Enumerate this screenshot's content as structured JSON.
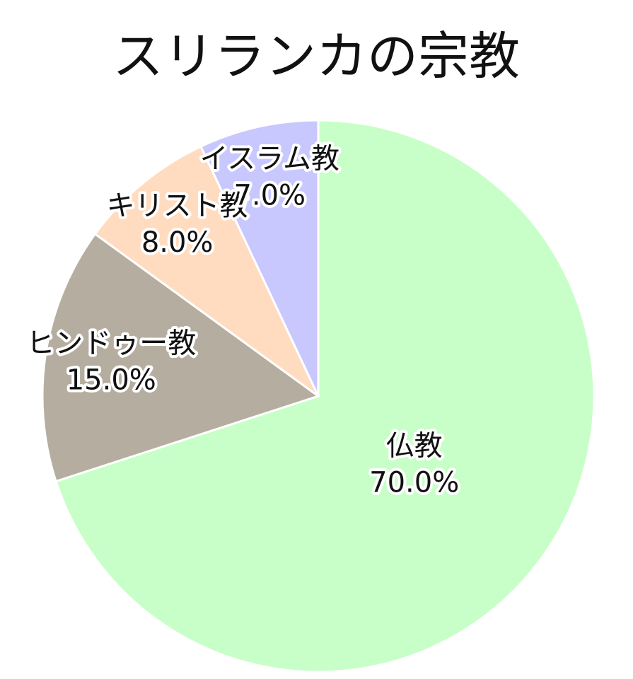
{
  "chart_data": {
    "type": "pie",
    "title": "スリランカの宗教",
    "categories": [
      "仏教",
      "ヒンドゥー教",
      "キリスト教",
      "イスラム教"
    ],
    "values": [
      70,
      15,
      8,
      7
    ],
    "value_labels": [
      "70.0%",
      "15.0%",
      "8.0%",
      "7.0%"
    ],
    "colors": [
      "#c8ffc8",
      "#b5aea0",
      "#ffdcc0",
      "#c8c8ff"
    ]
  }
}
